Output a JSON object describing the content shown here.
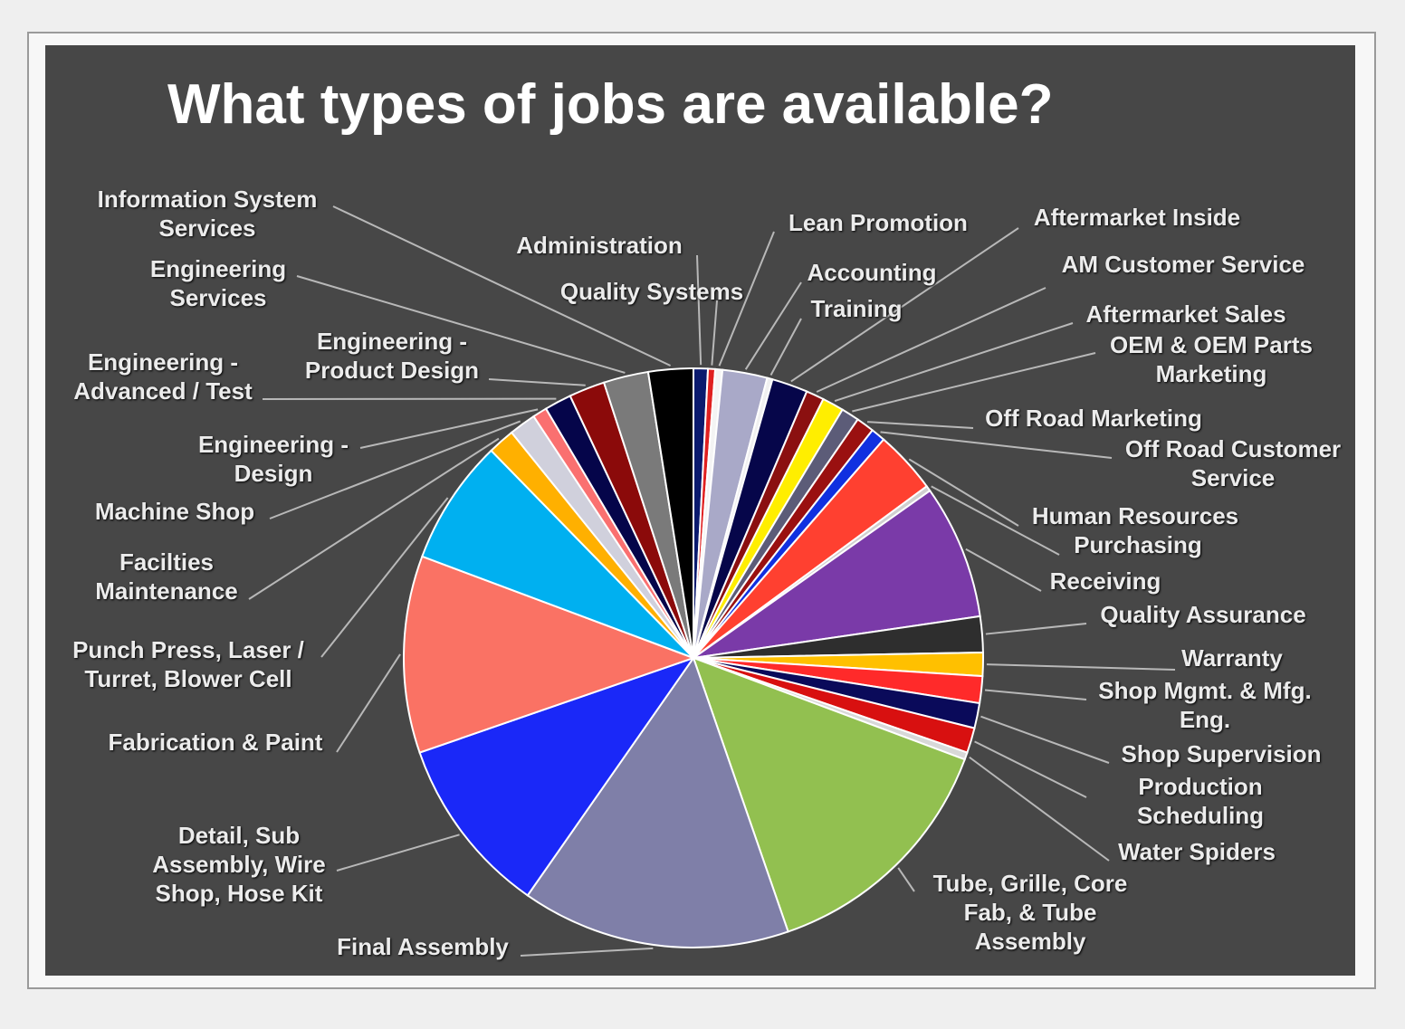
{
  "chart_data": {
    "type": "pie",
    "title": "What types of jobs are available?",
    "categories": [
      "Administration",
      "Quality Systems",
      "Lean Promotion",
      "Accounting",
      "Training",
      "Aftermarket Inside",
      "AM Customer Service",
      "Aftermarket Sales",
      "OEM & OEM Parts Marketing",
      "Off Road Marketing",
      "Off Road Customer Service",
      "Human Resources",
      "Purchasing",
      "Receiving",
      "Quality Assurance",
      "Warranty",
      "Shop Mgmt. & Mfg. Eng.",
      "Shop Supervision",
      "Production Scheduling",
      "Water Spiders",
      "Tube, Grille, Core Fab, & Tube Assembly",
      "Final Assembly",
      "Detail, Sub Assembly, Wire Shop, Hose Kit",
      "Fabrication & Paint",
      "Punch Press, Laser / Turret, Blower Cell",
      "Facilties Maintenance",
      "Machine Shop",
      "Engineering - Design",
      "Engineering - Advanced / Test",
      "Engineering - Product Design",
      "Engineering Services",
      "Information System Services"
    ],
    "values": [
      0.8,
      0.4,
      0.4,
      2.5,
      0.3,
      2,
      1,
      1.2,
      1,
      1,
      0.8,
      3.5,
      0.3,
      7.5,
      2,
      1.3,
      1.5,
      1.4,
      1.4,
      0.4,
      14,
      15,
      10,
      11,
      7,
      1.5,
      1.5,
      0.8,
      1.5,
      2,
      2.5,
      2.5
    ],
    "colors": [
      "#0b1a6e",
      "#e02020",
      "#f4f4f4",
      "#a9a9c8",
      "#f0f0f0",
      "#06064a",
      "#8b1010",
      "#ffee00",
      "#5c5c78",
      "#9a1010",
      "#1030e0",
      "#ff4030",
      "#d0d0d0",
      "#7a3aa8",
      "#2e2e2e",
      "#ffc000",
      "#ff2a2a",
      "#0a0a5a",
      "#d81010",
      "#d8d8d8",
      "#92c050",
      "#7f7fa8",
      "#1a28f8",
      "#fa7264",
      "#00b0f0",
      "#ffb000",
      "#d0d0dc",
      "#fa7070",
      "#05054a",
      "#8b0a0a",
      "#7a7a7a",
      "#000000"
    ]
  }
}
